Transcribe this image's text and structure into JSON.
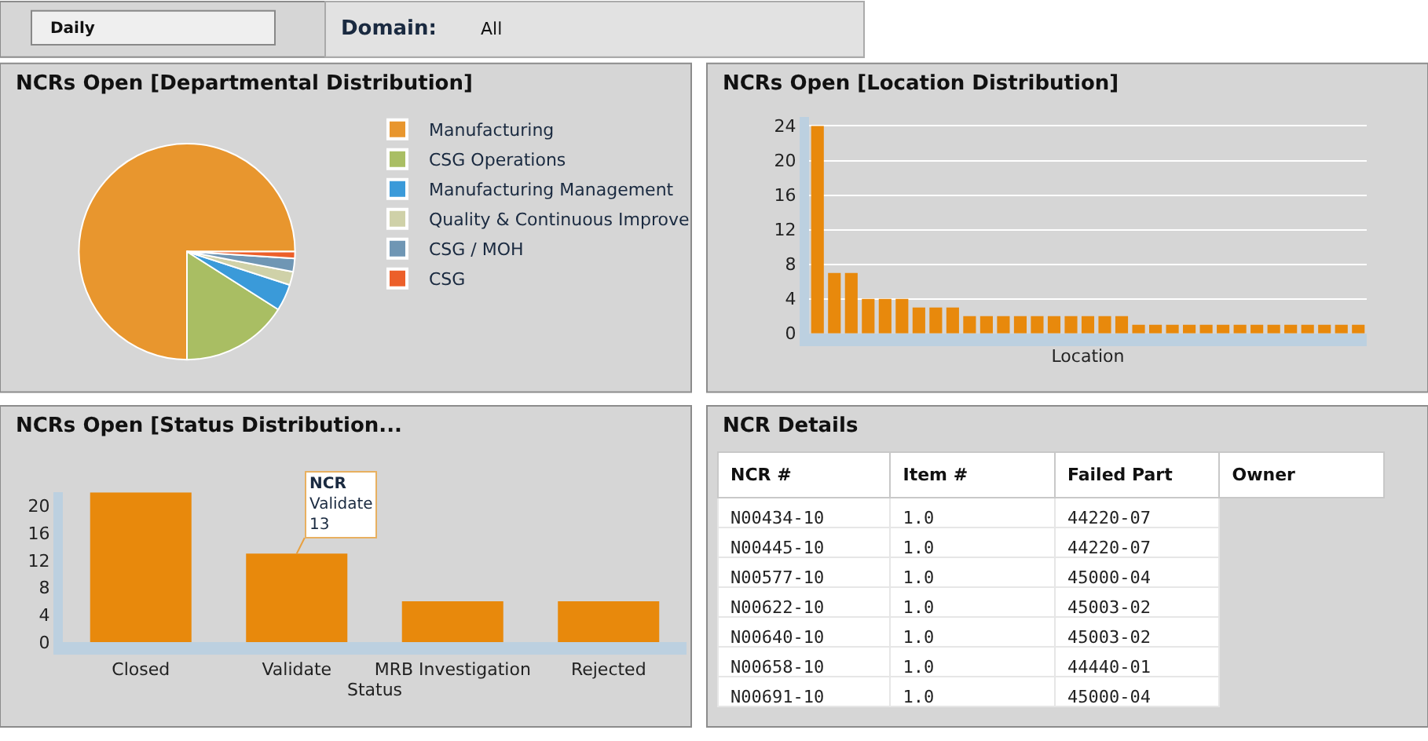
{
  "chart_data": [
    {
      "type": "other",
      "annotations": [
        "Daily",
        "Domain:",
        "All"
      ]
    },
    {
      "type": "pie",
      "title": "NCRs Open [Departmental Distribution]",
      "categories": [
        "Manufacturing",
        "CSG Operations",
        "Manufacturing Management",
        "Quality & Continuous Improve",
        "CSG / MOH",
        "CSG"
      ],
      "values": [
        75,
        16,
        4,
        2,
        2,
        1
      ],
      "colors": [
        "#e8962e",
        "#a9be63",
        "#3a9ad9",
        "#cfd1a8",
        "#6f96b4",
        "#ec5f2a"
      ],
      "legend": "right"
    },
    {
      "type": "bar",
      "title": "NCRs Open [Location Distribution]",
      "xlabel": "Location",
      "categories": [
        null,
        null,
        null,
        null,
        null,
        null,
        null,
        null,
        null,
        null,
        null,
        null,
        null,
        null,
        null,
        null,
        null,
        null,
        null,
        null,
        null,
        null,
        null,
        null,
        null,
        null,
        null,
        null,
        null,
        null,
        null,
        null,
        null
      ],
      "values": [
        24,
        7,
        7,
        4,
        4,
        4,
        3,
        3,
        3,
        2,
        2,
        2,
        2,
        2,
        2,
        2,
        2,
        2,
        2,
        1,
        1,
        1,
        1,
        1,
        1,
        1,
        1,
        1,
        1,
        1,
        1,
        1,
        1
      ],
      "color": "#e8890c",
      "ylim": [
        0,
        25
      ],
      "yticks": [
        0,
        4,
        8,
        12,
        16,
        20,
        24
      ],
      "grid": "y"
    },
    {
      "type": "bar",
      "title": "NCRs Open [Status Distribution...",
      "xlabel": "Status",
      "categories": [
        "Closed",
        "Validate",
        "MRB Investigation",
        "Rejected"
      ],
      "values": [
        22,
        13,
        6,
        6
      ],
      "color": "#e8890c",
      "ylim": [
        0,
        22
      ],
      "yticks": [
        0,
        4,
        8,
        12,
        16,
        20
      ],
      "grid": false,
      "annotations": [
        {
          "text": "NCR\nValidate\n13",
          "x": "Validate",
          "y": 13
        }
      ]
    },
    {
      "type": "other",
      "title": "NCR Details",
      "categories": [
        "NCR #",
        "Item #",
        "Failed Part",
        "Owner"
      ],
      "cell_labels": [
        [
          "N00434-10",
          "1.0",
          "44220-07",
          null
        ],
        [
          "N00445-10",
          "1.0",
          "44220-07",
          null
        ],
        [
          "N00577-10",
          "1.0",
          "45000-04",
          null
        ],
        [
          "N00622-10",
          "1.0",
          "45003-02",
          null
        ],
        [
          "N00640-10",
          "1.0",
          "45003-02",
          null
        ],
        [
          "N00658-10",
          "1.0",
          "44440-01",
          null
        ],
        [
          "N00691-10",
          "1.0",
          "45000-04",
          null
        ]
      ]
    }
  ]
}
